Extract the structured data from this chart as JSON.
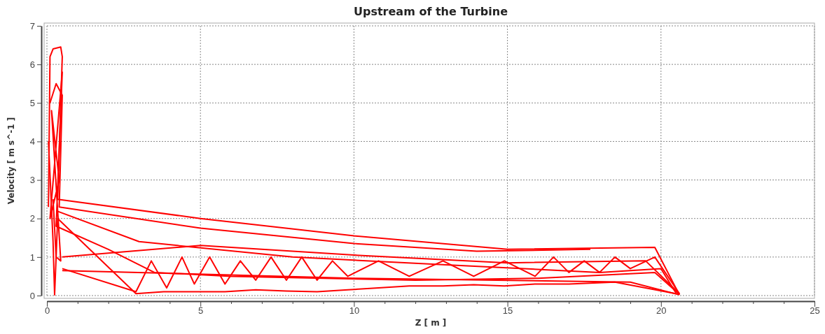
{
  "chart_data": {
    "type": "line",
    "title": "Upstream of the Turbine",
    "xlabel": "Z [ m ]",
    "ylabel": "Velocity [ m s^-1 ]",
    "xlim": [
      0,
      25
    ],
    "ylim": [
      0,
      7
    ],
    "xticks": [
      0,
      {
        "value": 1,
        "label": null
      },
      {
        "value": 2,
        "label": null
      },
      {
        "value": 3,
        "label": null
      },
      {
        "value": 4,
        "label": null
      },
      5,
      {
        "value": 6,
        "label": null
      },
      {
        "value": 7,
        "label": null
      },
      {
        "value": 8,
        "label": null
      },
      {
        "value": 9,
        "label": null
      },
      10,
      {
        "value": 11,
        "label": null
      },
      {
        "value": 12,
        "label": null
      },
      {
        "value": 13,
        "label": null
      },
      {
        "value": 14,
        "label": null
      },
      15,
      {
        "value": 16,
        "label": null
      },
      {
        "value": 17,
        "label": null
      },
      {
        "value": 18,
        "label": null
      },
      {
        "value": 19,
        "label": null
      },
      20,
      {
        "value": 21,
        "label": null
      },
      {
        "value": 22,
        "label": null
      },
      {
        "value": 23,
        "label": null
      },
      {
        "value": 24,
        "label": null
      },
      25
    ],
    "yticks": [
      0,
      1,
      2,
      3,
      4,
      5,
      6,
      7
    ],
    "grid": true,
    "line_style": "solid",
    "marker": "none",
    "series": [
      {
        "color": "#ff0000",
        "x": [
          0.05,
          0.1,
          0.2,
          0.45,
          0.5,
          0.35,
          5,
          10,
          15,
          19.8,
          20.6
        ],
        "values": [
          2.3,
          6.2,
          6.4,
          6.45,
          6.2,
          2.5,
          2.0,
          1.55,
          1.2,
          1.25,
          0.02
        ]
      },
      {
        "color": "#ff0000",
        "x": [
          0.1,
          0.3,
          0.5,
          0.4,
          5,
          10,
          14,
          17.7
        ],
        "values": [
          5.0,
          5.5,
          5.2,
          2.3,
          1.75,
          1.35,
          1.15,
          1.2
        ]
      },
      {
        "color": "#ff0000",
        "x": [
          0.05,
          0.2,
          0.25,
          0.35,
          2.9,
          3.8,
          4.8,
          5.8,
          6.8,
          7.8,
          8.8,
          9.8,
          10.8,
          11.8,
          12.9,
          13.9,
          14.9,
          15.9,
          17,
          18.5,
          20.6
        ],
        "values": [
          4.0,
          1.4,
          0.02,
          2.0,
          0.05,
          0.1,
          0.1,
          0.1,
          0.15,
          0.12,
          0.1,
          0.15,
          0.2,
          0.25,
          0.25,
          0.28,
          0.25,
          0.3,
          0.3,
          0.35,
          0.03
        ]
      },
      {
        "color": "#ff0000",
        "x": [
          0.5,
          2.9,
          3.4,
          3.9,
          4.4,
          4.8,
          5.3,
          5.8,
          6.3,
          6.8,
          7.3,
          7.8,
          8.3,
          8.8,
          9.3,
          9.8,
          10.8,
          11.8,
          12.9,
          13.9,
          14.9,
          15.9,
          16.5,
          17,
          17.5,
          18,
          18.5,
          19,
          19.8,
          20.6
        ],
        "values": [
          0.7,
          0.1,
          0.9,
          0.2,
          1.0,
          0.3,
          1.0,
          0.3,
          0.9,
          0.4,
          1.0,
          0.4,
          1.0,
          0.4,
          0.9,
          0.5,
          0.9,
          0.5,
          0.9,
          0.5,
          0.9,
          0.5,
          1.0,
          0.6,
          0.9,
          0.6,
          1.0,
          0.7,
          1.0,
          0.05
        ]
      },
      {
        "color": "#ff0000",
        "x": [
          0.5,
          5,
          10,
          15,
          19.5,
          20.6
        ],
        "values": [
          1.0,
          1.3,
          1.05,
          0.85,
          0.9,
          0.05
        ]
      },
      {
        "color": "#ff0000",
        "x": [
          0.3,
          3,
          8,
          13,
          18,
          20,
          20.5
        ],
        "values": [
          2.2,
          1.4,
          1.0,
          0.8,
          0.6,
          0.7,
          0.05
        ]
      },
      {
        "color": "#ff0000",
        "x": [
          0.5,
          10,
          19,
          20.6
        ],
        "values": [
          0.65,
          0.45,
          0.35,
          0.02
        ]
      },
      {
        "color": "#ff0000",
        "x": [
          0.2,
          0.3,
          0.45,
          0.15,
          0.4,
          0.1,
          0.5,
          0.3,
          2,
          3.5,
          6,
          9,
          12,
          16,
          19.8,
          20.6
        ],
        "values": [
          2.5,
          1.0,
          0.9,
          4.8,
          3.0,
          2.0,
          5.8,
          1.8,
          1.2,
          0.6,
          0.5,
          0.45,
          0.4,
          0.45,
          0.6,
          0.03
        ]
      }
    ]
  }
}
